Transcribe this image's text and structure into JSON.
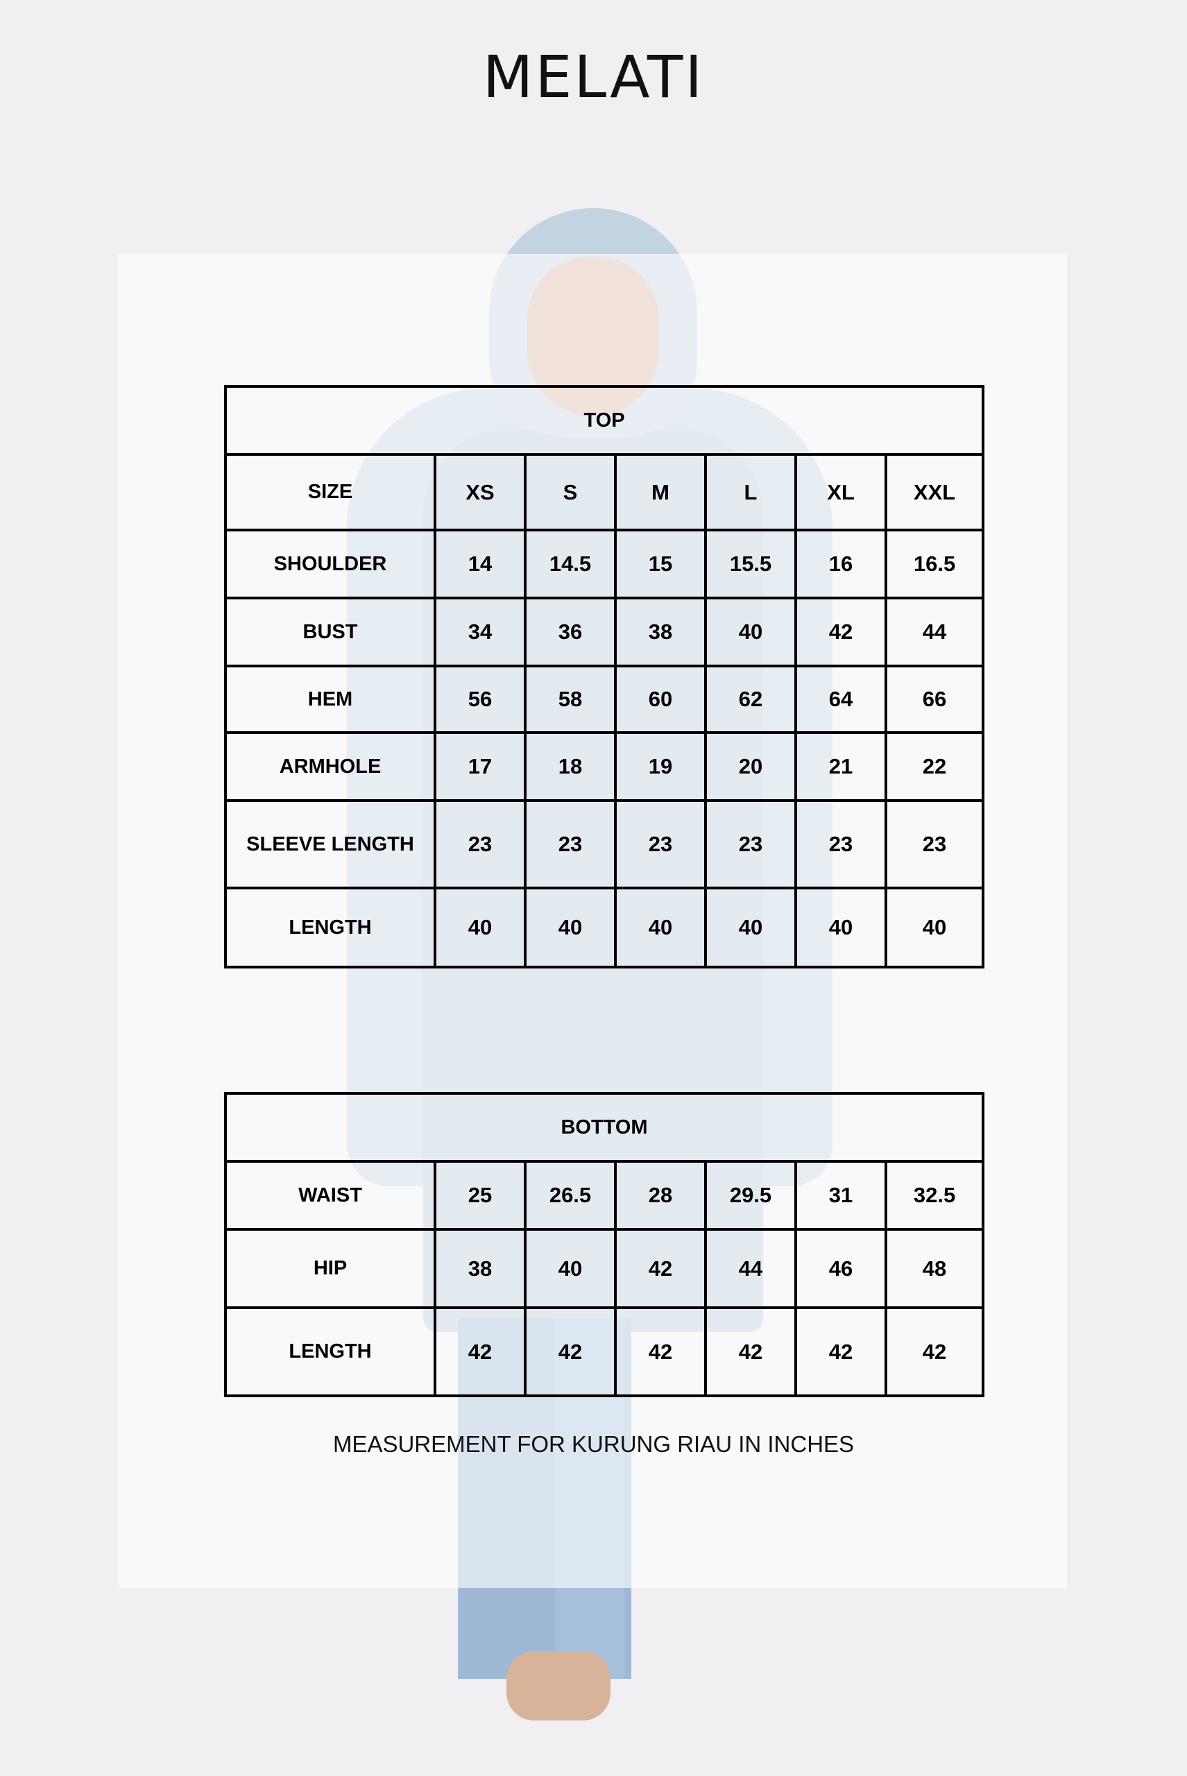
{
  "title": "MELATI",
  "top": {
    "heading": "TOP",
    "size_label": "SIZE",
    "sizes": [
      "XS",
      "S",
      "M",
      "L",
      "XL",
      "XXL"
    ],
    "rows": [
      {
        "label": "SHOULDER",
        "values": [
          "14",
          "14.5",
          "15",
          "15.5",
          "16",
          "16.5"
        ]
      },
      {
        "label": "BUST",
        "values": [
          "34",
          "36",
          "38",
          "40",
          "42",
          "44"
        ]
      },
      {
        "label": "HEM",
        "values": [
          "56",
          "58",
          "60",
          "62",
          "64",
          "66"
        ]
      },
      {
        "label": "ARMHOLE",
        "values": [
          "17",
          "18",
          "19",
          "20",
          "21",
          "22"
        ]
      },
      {
        "label": "SLEEVE LENGTH",
        "values": [
          "23",
          "23",
          "23",
          "23",
          "23",
          "23"
        ]
      },
      {
        "label": "LENGTH",
        "values": [
          "40",
          "40",
          "40",
          "40",
          "40",
          "40"
        ]
      }
    ]
  },
  "bottom": {
    "heading": "BOTTOM",
    "rows": [
      {
        "label": "WAIST",
        "values": [
          "25",
          "26.5",
          "28",
          "29.5",
          "31",
          "32.5"
        ]
      },
      {
        "label": "HIP",
        "values": [
          "38",
          "40",
          "42",
          "44",
          "46",
          "48"
        ]
      },
      {
        "label": "LENGTH",
        "values": [
          "42",
          "42",
          "42",
          "42",
          "42",
          "42"
        ]
      }
    ]
  },
  "footnote": "MEASUREMENT FOR KURUNG RIAU IN INCHES"
}
